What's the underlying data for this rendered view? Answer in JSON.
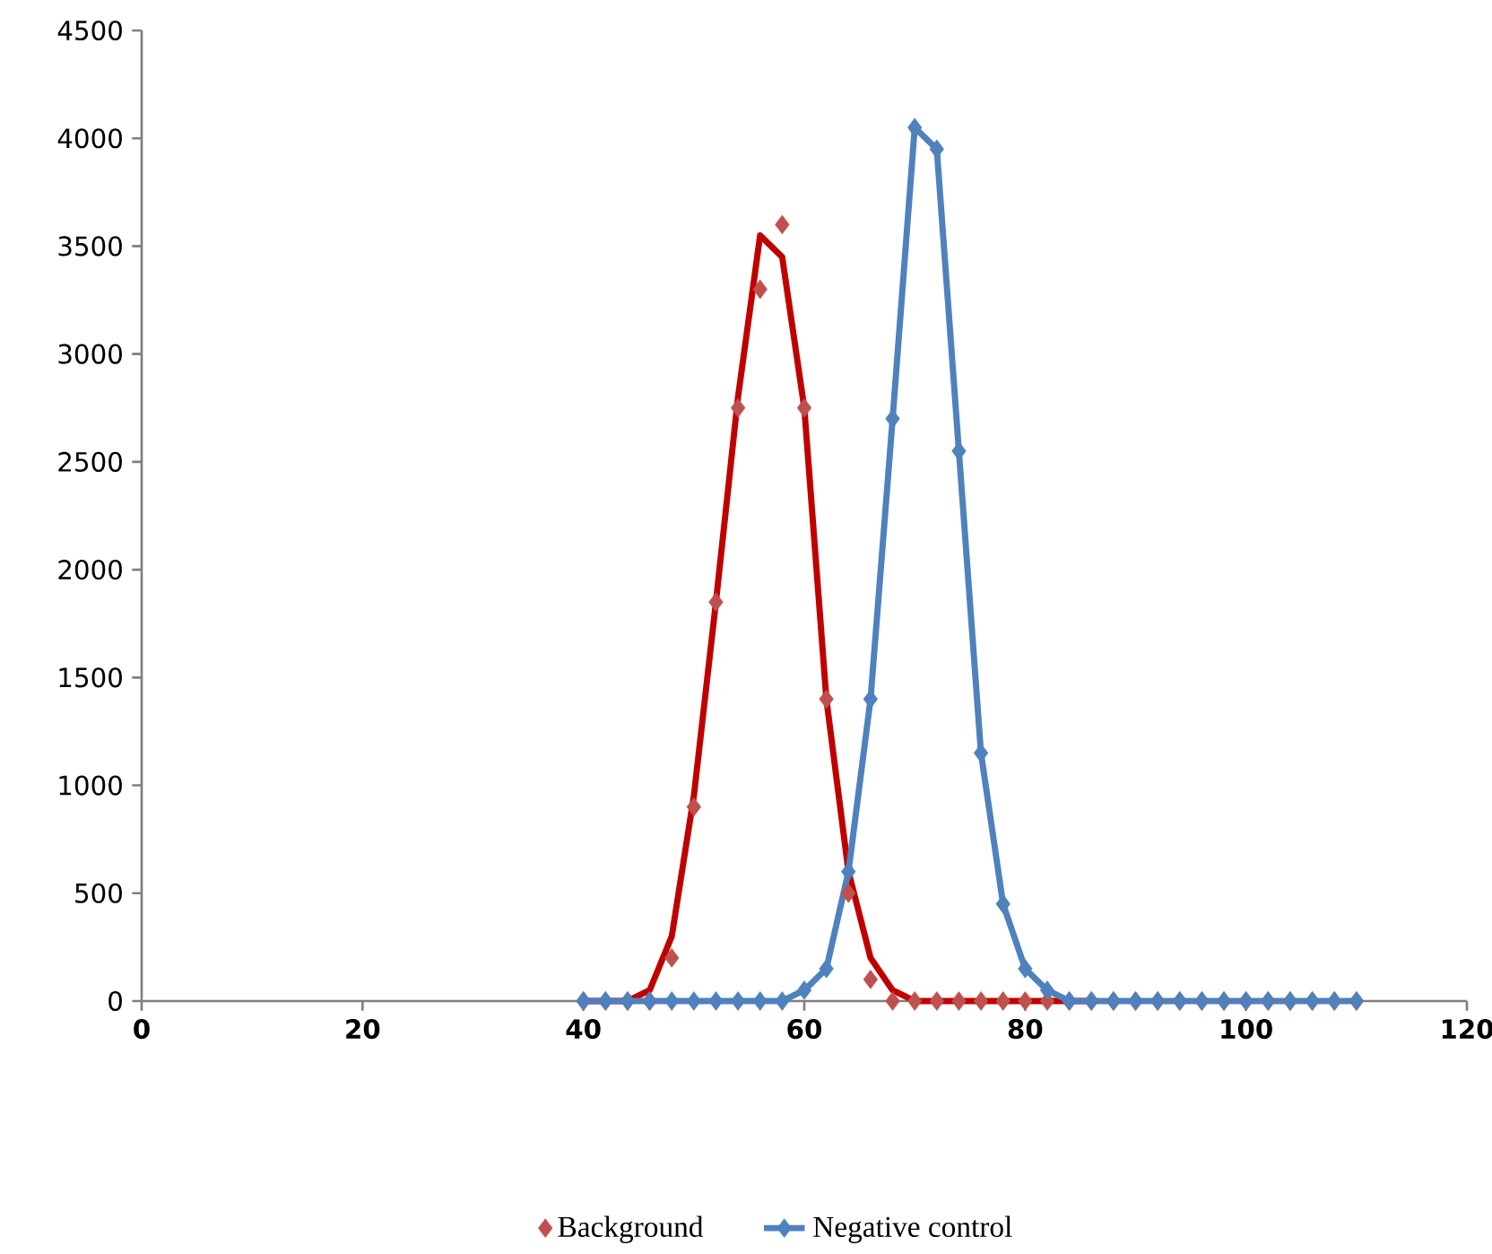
{
  "chart_data": {
    "type": "line",
    "x": [
      40,
      42,
      44,
      46,
      48,
      50,
      52,
      54,
      56,
      58,
      60,
      62,
      64,
      66,
      68,
      70,
      72,
      74,
      76,
      78,
      80,
      82,
      84,
      86,
      88,
      90,
      92,
      94,
      96,
      98,
      100,
      102,
      104,
      106,
      108,
      110
    ],
    "series": [
      {
        "type": "line",
        "color": "#c00000",
        "marker": "none",
        "values": [
          0,
          0,
          0,
          50,
          300,
          950,
          1850,
          2800,
          3550,
          3450,
          2750,
          1400,
          600,
          200,
          50,
          0,
          0,
          0,
          0,
          0,
          0,
          0,
          0,
          0,
          null,
          null,
          null,
          null,
          null,
          null,
          null,
          null,
          null,
          null,
          null,
          null
        ]
      },
      {
        "name": "Background",
        "type": "scatter",
        "color": "#c0504d",
        "marker": "diamond",
        "values": [
          0,
          0,
          0,
          0,
          200,
          900,
          1850,
          2750,
          3300,
          3600,
          2750,
          1400,
          500,
          100,
          0,
          0,
          0,
          0,
          0,
          0,
          0,
          0,
          0,
          0,
          0,
          0,
          0,
          0,
          0,
          0,
          0,
          0,
          0,
          0,
          0,
          0
        ]
      },
      {
        "name": "Negative control",
        "color": "#4f81bd",
        "marker": "diamond",
        "values": [
          0,
          0,
          0,
          0,
          0,
          0,
          0,
          0,
          0,
          0,
          50,
          150,
          600,
          1400,
          2700,
          4050,
          3950,
          2550,
          1150,
          450,
          150,
          50,
          0,
          0,
          0,
          0,
          0,
          0,
          0,
          0,
          0,
          0,
          0,
          0,
          0,
          0
        ]
      }
    ],
    "xlim": [
      0,
      120
    ],
    "xticks": [
      0,
      20,
      40,
      60,
      80,
      100,
      120
    ],
    "ylim": [
      0,
      4500
    ],
    "yticks": [
      0,
      500,
      1000,
      1500,
      2000,
      2500,
      3000,
      3500,
      4000,
      4500
    ],
    "grid": false,
    "legend": "bottom"
  }
}
